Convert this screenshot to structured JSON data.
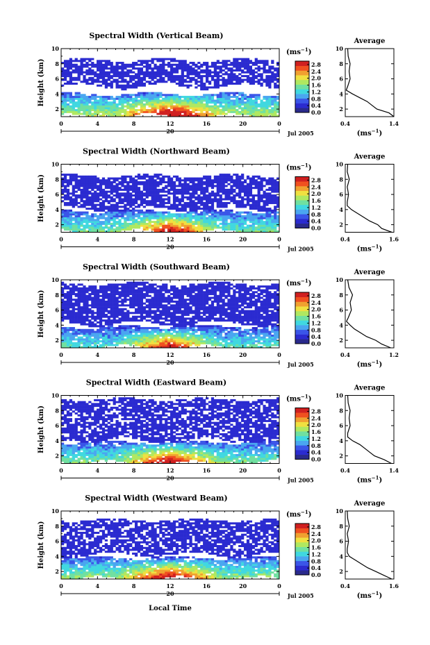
{
  "shared": {
    "ylabel": "Height (km)",
    "xticks": [
      "0",
      "4",
      "8",
      "12",
      "16",
      "20",
      "0"
    ],
    "yticks": [
      "2",
      "4",
      "6",
      "8",
      "10"
    ],
    "date_day": "20",
    "date_label": "Jul 2005",
    "unit_label": "(ms",
    "unit_exp": "−1",
    "colorbar_ticks": [
      "0.0",
      "0.4",
      "0.8",
      "1.2",
      "1.6",
      "2.0",
      "2.4",
      "2.8"
    ],
    "avg_title": "Average",
    "avg_unit": "(ms",
    "avg_unit_exp": "−1",
    "avg_unit_close": ")",
    "xlabel": "Local Time"
  },
  "chart_data": [
    {
      "type": "heatmap",
      "title": "Spectral Width (Vertical Beam)",
      "xlim": [
        0,
        24
      ],
      "ylim": [
        1,
        10
      ],
      "colorbar_range": [
        0,
        3
      ],
      "colors": [
        "#2a2a8c",
        "#2b2bd0",
        "#3a55e8",
        "#4aa6f0",
        "#40d8e0",
        "#70e0a0",
        "#b0e860",
        "#f0e040",
        "#f0a030",
        "#f05020",
        "#d02020"
      ],
      "layers": [
        {
          "y_range": [
            5.0,
            8.5
          ],
          "value": 0.3,
          "coverage": 0.75
        },
        {
          "y_range": [
            1.0,
            4.0
          ],
          "value": 1.1,
          "coverage": 0.9
        }
      ],
      "average_profile": {
        "x_ticks": [
          "0.4",
          "1.4"
        ],
        "xlim": [
          0.4,
          1.4
        ],
        "heights": [
          1,
          1.5,
          2,
          2.5,
          3,
          3.5,
          4,
          4.5,
          5,
          6,
          7,
          8,
          9,
          10
        ],
        "values": [
          1.4,
          1.3,
          1.05,
          0.95,
          0.85,
          0.7,
          0.55,
          0.42,
          0.45,
          0.5,
          0.48,
          0.5,
          0.46,
          0.45
        ]
      }
    },
    {
      "type": "heatmap",
      "title": "Spectral Width (Northward Beam)",
      "xlim": [
        0,
        24
      ],
      "ylim": [
        1,
        10
      ],
      "colorbar_range": [
        0,
        3
      ],
      "colors": [
        "#2a2a8c",
        "#2b2bd0",
        "#3a55e8",
        "#4aa6f0",
        "#40d8e0",
        "#70e0a0",
        "#b0e860",
        "#f0e040",
        "#f0a030",
        "#f05020",
        "#d02020"
      ],
      "layers": [
        {
          "y_range": [
            4.0,
            8.5
          ],
          "value": 0.3,
          "coverage": 0.8
        },
        {
          "y_range": [
            1.0,
            3.8
          ],
          "value": 0.9,
          "coverage": 0.9
        }
      ],
      "average_profile": {
        "x_ticks": [
          "0.4",
          "1.6"
        ],
        "xlim": [
          0.4,
          1.6
        ],
        "heights": [
          1,
          1.5,
          2,
          2.5,
          3,
          3.5,
          4,
          4.5,
          5,
          6,
          7,
          8,
          9,
          10
        ],
        "values": [
          1.55,
          1.3,
          1.2,
          1.0,
          0.85,
          0.7,
          0.55,
          0.45,
          0.45,
          0.48,
          0.45,
          0.5,
          0.45,
          0.46
        ]
      }
    },
    {
      "type": "heatmap",
      "title": "Spectral Width (Southward Beam)",
      "xlim": [
        0,
        24
      ],
      "ylim": [
        1,
        10
      ],
      "colorbar_range": [
        0,
        3
      ],
      "colors": [
        "#2a2a8c",
        "#2b2bd0",
        "#3a55e8",
        "#4aa6f0",
        "#40d8e0",
        "#70e0a0",
        "#b0e860",
        "#f0e040",
        "#f0a030",
        "#f05020",
        "#d02020"
      ],
      "layers": [
        {
          "y_range": [
            4.2,
            9.5
          ],
          "value": 0.3,
          "coverage": 0.85
        },
        {
          "y_range": [
            1.0,
            3.8
          ],
          "value": 0.8,
          "coverage": 0.9
        }
      ],
      "average_profile": {
        "x_ticks": [
          "0.4",
          "1.2"
        ],
        "xlim": [
          0.4,
          1.2
        ],
        "heights": [
          1,
          1.5,
          2,
          2.5,
          3,
          3.5,
          4,
          4.5,
          5,
          6,
          7,
          8,
          9,
          10
        ],
        "values": [
          1.15,
          1.0,
          0.9,
          0.75,
          0.65,
          0.55,
          0.48,
          0.42,
          0.45,
          0.5,
          0.48,
          0.52,
          0.46,
          0.44
        ]
      }
    },
    {
      "type": "heatmap",
      "title": "Spectral Width (Eastward Beam)",
      "xlim": [
        0,
        24
      ],
      "ylim": [
        1,
        10
      ],
      "colorbar_range": [
        0,
        3
      ],
      "colors": [
        "#2a2a8c",
        "#2b2bd0",
        "#3a55e8",
        "#4aa6f0",
        "#40d8e0",
        "#70e0a0",
        "#b0e860",
        "#f0e040",
        "#f0a030",
        "#f05020",
        "#d02020"
      ],
      "layers": [
        {
          "y_range": [
            4.0,
            9.5
          ],
          "value": 0.3,
          "coverage": 0.75
        },
        {
          "y_range": [
            1.0,
            3.8
          ],
          "value": 0.95,
          "coverage": 0.9
        }
      ],
      "average_profile": {
        "x_ticks": [
          "0.4",
          "1.4"
        ],
        "xlim": [
          0.4,
          1.4
        ],
        "heights": [
          1,
          1.5,
          2,
          2.5,
          3,
          3.5,
          4,
          4.5,
          5,
          6,
          7,
          8,
          9,
          10
        ],
        "values": [
          1.35,
          1.2,
          1.0,
          0.9,
          0.8,
          0.7,
          0.55,
          0.45,
          0.45,
          0.5,
          0.48,
          0.5,
          0.46,
          0.45
        ]
      }
    },
    {
      "type": "heatmap",
      "title": "Spectral Width (Westward Beam)",
      "xlim": [
        0,
        24
      ],
      "ylim": [
        1,
        10
      ],
      "colorbar_range": [
        0,
        3
      ],
      "colors": [
        "#2a2a8c",
        "#2b2bd0",
        "#3a55e8",
        "#4aa6f0",
        "#40d8e0",
        "#70e0a0",
        "#b0e860",
        "#f0e040",
        "#f0a030",
        "#f05020",
        "#d02020"
      ],
      "layers": [
        {
          "y_range": [
            4.2,
            8.8
          ],
          "value": 0.3,
          "coverage": 0.75
        },
        {
          "y_range": [
            1.0,
            3.8
          ],
          "value": 1.0,
          "coverage": 0.9
        }
      ],
      "average_profile": {
        "x_ticks": [
          "0.4",
          "1.6"
        ],
        "xlim": [
          0.4,
          1.6
        ],
        "heights": [
          1,
          1.5,
          2,
          2.5,
          3,
          3.5,
          4,
          4.5,
          5,
          6,
          7,
          8,
          9,
          10
        ],
        "values": [
          1.55,
          1.35,
          1.15,
          0.95,
          0.8,
          0.65,
          0.5,
          0.45,
          0.45,
          0.48,
          0.45,
          0.5,
          0.46,
          0.45
        ]
      }
    }
  ]
}
